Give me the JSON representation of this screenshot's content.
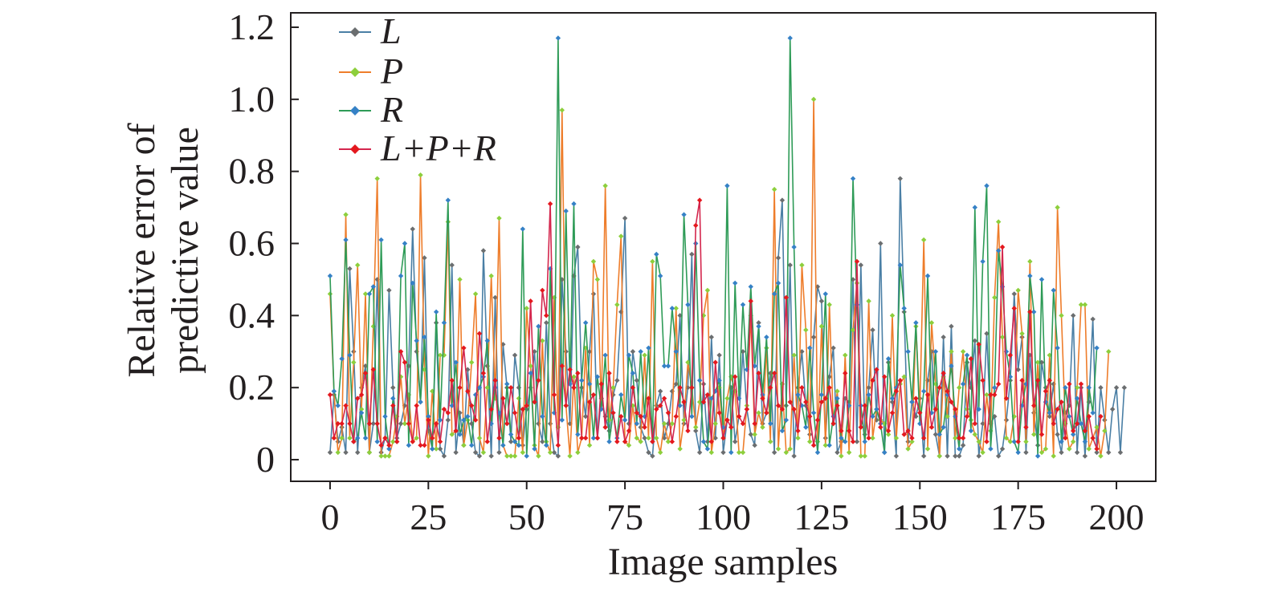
{
  "chart_data": {
    "type": "line",
    "xlabel": "Image samples",
    "ylabel_lines": [
      "Relative error of",
      "predictive value"
    ],
    "xlim": [
      -10,
      210
    ],
    "ylim": [
      -0.06,
      1.24
    ],
    "x_ticks": [
      0,
      25,
      50,
      75,
      100,
      125,
      150,
      175,
      200
    ],
    "x_tick_labels": [
      "0",
      "25",
      "50",
      "75",
      "100",
      "125",
      "150",
      "175",
      "200"
    ],
    "y_ticks": [
      0,
      0.2,
      0.4,
      0.6,
      0.8,
      1.0,
      1.2
    ],
    "y_tick_labels": [
      "0",
      "0.2",
      "0.4",
      "0.6",
      "0.8",
      "1.0",
      "1.2"
    ],
    "grid": false,
    "legend_position": "top-left",
    "series_x_start": 0,
    "series_x_step": 1,
    "series": [
      {
        "name": "L",
        "line_color": "#4a7fa5",
        "marker_color": "#6b6e70",
        "values": [
          0.02,
          0.18,
          0.05,
          0.09,
          0.02,
          0.53,
          0.3,
          0.02,
          0.2,
          0.26,
          0.02,
          0.1,
          0.5,
          0.02,
          0.06,
          0.47,
          0.2,
          0.06,
          0.1,
          0.15,
          0.26,
          0.64,
          0.3,
          0.16,
          0.56,
          0.08,
          0.03,
          0.38,
          0.03,
          0.01,
          0.11,
          0.54,
          0.02,
          0.13,
          0.04,
          0.25,
          0.1,
          0.02,
          0.01,
          0.58,
          0.26,
          0.01,
          0.45,
          0.02,
          0.32,
          0.2,
          0.05,
          0.29,
          0.2,
          0.04,
          0.14,
          0.2,
          0.3,
          0.1,
          0.05,
          0.38,
          0.1,
          0.02,
          0.01,
          0.5,
          0.3,
          0.1,
          0.51,
          0.59,
          0.2,
          0.12,
          0.3,
          0.46,
          0.06,
          0.17,
          0.12,
          0.08,
          0.18,
          0.22,
          0.41,
          0.67,
          0.1,
          0.3,
          0.22,
          0.09,
          0.06,
          0.02,
          0.01,
          0.15,
          0.19,
          0.06,
          0.1,
          0.19,
          0.21,
          0.4,
          0.1,
          0.2,
          0.57,
          0.08,
          0.02,
          0.21,
          0.05,
          0.34,
          0.06,
          0.29,
          0.02,
          0.11,
          0.2,
          0.05,
          0.12,
          0.3,
          0.14,
          0.07,
          0.04,
          0.38,
          0.1,
          0.13,
          0.24,
          0.02,
          0.56,
          0.72,
          0.15,
          0.54,
          0.01,
          0.2,
          0.3,
          0.15,
          0.07,
          0.34,
          0.48,
          0.44,
          0.06,
          0.23,
          0.31,
          0.02,
          0.05,
          0.17,
          0.16,
          0.5,
          0.05,
          0.54,
          0.07,
          0.2,
          0.36,
          0.11,
          0.6,
          0.02,
          0.27,
          0.16,
          0.01,
          0.78,
          0.41,
          0.05,
          0.16,
          0.12,
          0.17,
          0.01,
          0.22,
          0.3,
          0.07,
          0.01,
          0.34,
          0.01,
          0.37,
          0.01,
          0.01,
          0.04,
          0.27,
          0.2,
          0.33,
          0.01,
          0.1,
          0.35,
          0.1,
          0.12,
          0.01,
          0.03,
          0.11,
          0.22,
          0.46,
          0.25,
          0.34,
          0.02,
          0.29,
          0.13,
          0.04,
          0.27,
          0.2,
          0.12,
          0.21,
          0.07,
          0.02,
          0.13,
          0.15,
          0.4,
          0.02,
          0.2,
          0.01,
          0.16,
          0.39,
          0.02,
          0.2,
          0.11,
          0.02,
          0.14,
          0.2,
          0.02,
          0.2
        ]
      },
      {
        "name": "P",
        "line_color": "#ee7d2b",
        "marker_color": "#8dcf3c",
        "values": [
          0.46,
          0.19,
          0.02,
          0.06,
          0.68,
          0.06,
          0.27,
          0.54,
          0.14,
          0.46,
          0.02,
          0.37,
          0.78,
          0.01,
          0.01,
          0.01,
          0.05,
          0.12,
          0.23,
          0.1,
          0.18,
          0.05,
          0.06,
          0.79,
          0.25,
          0.01,
          0.19,
          0.03,
          0.29,
          0.29,
          0.66,
          0.07,
          0.08,
          0.5,
          0.04,
          0.11,
          0.27,
          0.46,
          0.06,
          0.02,
          0.2,
          0.51,
          0.17,
          0.67,
          0.04,
          0.01,
          0.01,
          0.01,
          0.17,
          0.02,
          0.42,
          0.26,
          0.04,
          0.01,
          0.33,
          0.05,
          0.02,
          0.45,
          0.09,
          0.97,
          0.15,
          0.01,
          0.23,
          0.02,
          0.06,
          0.31,
          0.04,
          0.55,
          0.5,
          0.14,
          0.76,
          0.11,
          0.2,
          0.43,
          0.62,
          0.05,
          0.04,
          0.15,
          0.06,
          0.05,
          0.29,
          0.06,
          0.55,
          0.06,
          0.02,
          0.1,
          0.05,
          0.1,
          0.42,
          0.03,
          0.11,
          0.27,
          0.2,
          0.09,
          0.16,
          0.4,
          0.47,
          0.02,
          0.1,
          0.2,
          0.06,
          0.17,
          0.23,
          0.19,
          0.02,
          0.02,
          0.15,
          0.4,
          0.07,
          0.13,
          0.09,
          0.31,
          0.05,
          0.75,
          0.03,
          0.21,
          0.02,
          0.03,
          0.29,
          0.06,
          0.54,
          0.36,
          0.05,
          1.0,
          0.05,
          0.37,
          0.04,
          0.43,
          0.1,
          0.19,
          0.01,
          0.29,
          0.02,
          0.36,
          0.49,
          0.01,
          0.01,
          0.44,
          0.06,
          0.14,
          0.11,
          0.1,
          0.07,
          0.4,
          0.06,
          0.21,
          0.23,
          0.03,
          0.05,
          0.37,
          0.14,
          0.61,
          0.03,
          0.38,
          0.21,
          0.01,
          0.23,
          0.12,
          0.3,
          0.06,
          0.2,
          0.3,
          0.14,
          0.11,
          0.07,
          0.05,
          0.02,
          0.18,
          0.08,
          0.45,
          0.66,
          0.34,
          0.06,
          0.05,
          0.12,
          0.47,
          0.35,
          0.05,
          0.55,
          0.07,
          0.27,
          0.02,
          0.03,
          0.29,
          0.01,
          0.7,
          0.4,
          0.1,
          0.03,
          0.05,
          0.2,
          0.43,
          0.43,
          0.03,
          0.06,
          0.09,
          0.01,
          0.08,
          0.3
        ]
      },
      {
        "name": "R",
        "line_color": "#2e9b57",
        "marker_color": "#3581c6",
        "values": [
          0.51,
          0.19,
          0.15,
          0.28,
          0.61,
          0.29,
          0.05,
          0.06,
          0.13,
          0.06,
          0.46,
          0.48,
          0.05,
          0.61,
          0.12,
          0.03,
          0.17,
          0.05,
          0.51,
          0.6,
          0.04,
          0.49,
          0.33,
          0.16,
          0.34,
          0.12,
          0.03,
          0.41,
          0.11,
          0.38,
          0.72,
          0.15,
          0.27,
          0.07,
          0.11,
          0.12,
          0.04,
          0.18,
          0.2,
          0.23,
          0.33,
          0.1,
          0.2,
          0.13,
          0.04,
          0.21,
          0.07,
          0.05,
          0.04,
          0.64,
          0.01,
          0.24,
          0.03,
          0.37,
          0.12,
          0.04,
          0.53,
          0.13,
          1.17,
          0.11,
          0.69,
          0.21,
          0.71,
          0.07,
          0.22,
          0.38,
          0.21,
          0.06,
          0.23,
          0.14,
          0.29,
          0.05,
          0.13,
          0.06,
          0.18,
          0.11,
          0.29,
          0.24,
          0.1,
          0.3,
          0.12,
          0.31,
          0.05,
          0.57,
          0.51,
          0.26,
          0.26,
          0.42,
          0.3,
          0.15,
          0.68,
          0.43,
          0.12,
          0.6,
          0.22,
          0.05,
          0.03,
          0.17,
          0.19,
          0.22,
          0.09,
          0.76,
          0.02,
          0.49,
          0.17,
          0.43,
          0.25,
          0.48,
          0.26,
          0.37,
          0.18,
          0.34,
          0.1,
          0.46,
          0.49,
          0.08,
          0.11,
          1.17,
          0.59,
          0.18,
          0.15,
          0.09,
          0.31,
          0.13,
          0.02,
          0.18,
          0.46,
          0.04,
          0.12,
          0.17,
          0.06,
          0.05,
          0.15,
          0.78,
          0.43,
          0.15,
          0.05,
          0.18,
          0.12,
          0.14,
          0.1,
          0.02,
          0.28,
          0.17,
          0.2,
          0.54,
          0.42,
          0.3,
          0.16,
          0.38,
          0.1,
          0.19,
          0.51,
          0.13,
          0.3,
          0.07,
          0.09,
          0.18,
          0.26,
          0.12,
          0.03,
          0.21,
          0.29,
          0.08,
          0.7,
          0.14,
          0.55,
          0.76,
          0.03,
          0.2,
          0.58,
          0.48,
          0.3,
          0.23,
          0.05,
          0.02,
          0.15,
          0.21,
          0.51,
          0.41,
          0.01,
          0.5,
          0.16,
          0.13,
          0.47,
          0.31,
          0.05,
          0.2,
          0.12,
          0.07,
          0.17,
          0.1,
          0.05,
          0.2,
          0.13,
          0.31
        ]
      },
      {
        "name": "L+P+R",
        "line_color": "#d4264d",
        "marker_color": "#e4181e",
        "values": [
          0.18,
          0.06,
          0.1,
          0.1,
          0.15,
          0.1,
          0.05,
          0.17,
          0.18,
          0.24,
          0.1,
          0.25,
          0.1,
          0.04,
          0.06,
          0.04,
          0.15,
          0.05,
          0.3,
          0.27,
          0.1,
          0.05,
          0.15,
          0.04,
          0.04,
          0.11,
          0.06,
          0.1,
          0.05,
          0.14,
          0.13,
          0.22,
          0.08,
          0.2,
          0.31,
          0.19,
          0.15,
          0.11,
          0.35,
          0.24,
          0.05,
          0.14,
          0.22,
          0.06,
          0.17,
          0.1,
          0.2,
          0.13,
          0.06,
          0.14,
          0.15,
          0.44,
          0.16,
          0.22,
          0.47,
          0.4,
          0.71,
          0.18,
          0.04,
          0.26,
          0.15,
          0.25,
          0.2,
          0.24,
          0.06,
          0.06,
          0.16,
          0.18,
          0.06,
          0.21,
          0.09,
          0.24,
          0.13,
          0.05,
          0.12,
          0.05,
          0.08,
          0.2,
          0.13,
          0.12,
          0.09,
          0.17,
          0.05,
          0.14,
          0.15,
          0.17,
          0.13,
          0.05,
          0.12,
          0.2,
          0.16,
          0.08,
          0.2,
          0.65,
          0.72,
          0.16,
          0.18,
          0.05,
          0.27,
          0.13,
          0.06,
          0.11,
          0.09,
          0.23,
          0.12,
          0.1,
          0.14,
          0.44,
          0.1,
          0.24,
          0.17,
          0.13,
          0.2,
          0.24,
          0.15,
          0.14,
          0.45,
          0.16,
          0.14,
          0.08,
          0.2,
          0.16,
          0.12,
          0.04,
          0.11,
          0.16,
          0.17,
          0.2,
          0.1,
          0.15,
          0.08,
          0.24,
          0.08,
          0.05,
          0.55,
          0.09,
          0.15,
          0.06,
          0.22,
          0.25,
          0.09,
          0.23,
          0.08,
          0.13,
          0.19,
          0.22,
          0.07,
          0.08,
          0.06,
          0.17,
          0.13,
          0.06,
          0.18,
          0.09,
          0.14,
          0.2,
          0.24,
          0.19,
          0.16,
          0.14,
          0.06,
          0.06,
          0.12,
          0.28,
          0.1,
          0.32,
          0.22,
          0.05,
          0.18,
          0.18,
          0.21,
          0.59,
          0.17,
          0.29,
          0.42,
          0.05,
          0.22,
          0.09,
          0.41,
          0.15,
          0.22,
          0.07,
          0.19,
          0.22,
          0.1,
          0.14,
          0.16,
          0.06,
          0.21,
          0.08,
          0.1,
          0.21,
          0.08,
          0.12,
          0.06,
          0.03,
          0.12
        ]
      }
    ]
  }
}
